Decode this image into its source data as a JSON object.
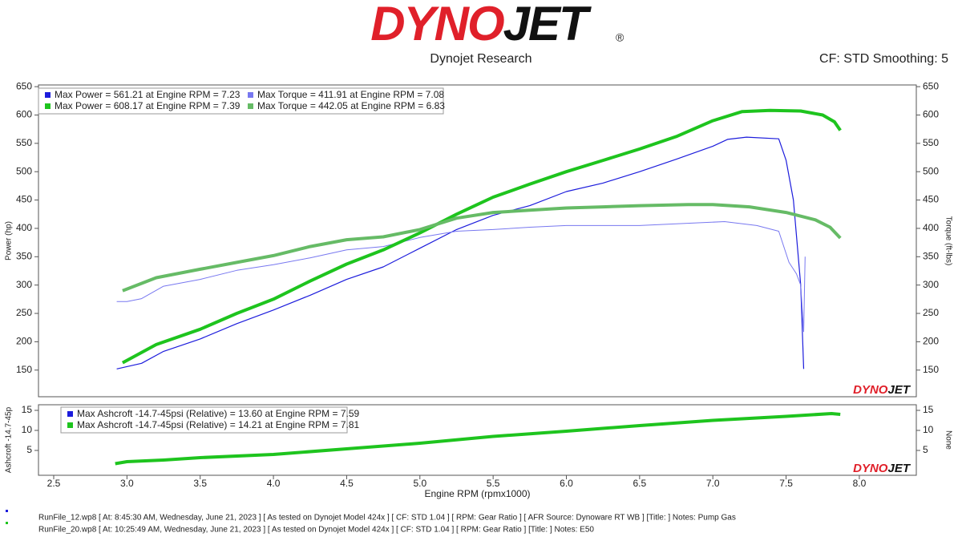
{
  "header": {
    "logo_red": "DYNO",
    "logo_black": "JET",
    "logo_mark": "®",
    "subtitle": "Dynojet Research",
    "settings": "CF: STD Smoothing: 5"
  },
  "chart_data": [
    {
      "type": "line",
      "ylabel": "Power (hp)",
      "y2label": "Torque (ft-lbs)",
      "xlim": [
        2.396,
        8.389
      ],
      "ylim": [
        103,
        653
      ],
      "yticks": [
        150,
        200,
        250,
        300,
        350,
        400,
        450,
        500,
        550,
        600,
        650
      ],
      "y2lim": [
        103,
        653
      ],
      "y2ticks": [
        150,
        200,
        250,
        300,
        350,
        400,
        450,
        500,
        550,
        600,
        650
      ],
      "grid": false,
      "series": [
        {
          "name": "Max Power = 561.21 at Engine RPM = 7.23",
          "color": "#1c1cdc",
          "width": 1.2,
          "x": [
            2.93,
            3.1,
            3.25,
            3.5,
            3.75,
            4.0,
            4.25,
            4.5,
            4.75,
            5.0,
            5.25,
            5.5,
            5.75,
            6.0,
            6.25,
            6.5,
            6.75,
            7.0,
            7.1,
            7.23,
            7.45,
            7.5,
            7.55,
            7.6,
            7.62
          ],
          "values": [
            152,
            162,
            183,
            205,
            232,
            256,
            282,
            310,
            332,
            365,
            398,
            423,
            440,
            465,
            480,
            500,
            522,
            545,
            557,
            561,
            558,
            520,
            450,
            300,
            152
          ]
        },
        {
          "name": "Max Torque = 411.91 at Engine RPM = 7.08",
          "color": "#7878f0",
          "width": 1,
          "axis": "y2",
          "x": [
            2.93,
            3.0,
            3.1,
            3.25,
            3.5,
            3.75,
            4.0,
            4.25,
            4.5,
            4.75,
            5.0,
            5.25,
            5.5,
            5.75,
            6.0,
            6.5,
            6.75,
            7.08,
            7.3,
            7.45,
            7.52,
            7.57,
            7.6,
            7.62,
            7.63
          ],
          "values": [
            271,
            271,
            276,
            298,
            310,
            326,
            336,
            348,
            362,
            368,
            384,
            395,
            398,
            402,
            405,
            405,
            408,
            412,
            405,
            395,
            340,
            320,
            300,
            218,
            350
          ]
        },
        {
          "name": "Max Power = 608.17 at Engine RPM = 7.39",
          "color": "#1ec41e",
          "width": 4,
          "x": [
            2.97,
            3.2,
            3.5,
            3.75,
            4.0,
            4.25,
            4.5,
            4.75,
            5.0,
            5.25,
            5.5,
            5.75,
            6.0,
            6.25,
            6.5,
            6.75,
            7.0,
            7.2,
            7.39,
            7.6,
            7.75,
            7.83,
            7.87
          ],
          "values": [
            163,
            195,
            222,
            250,
            275,
            307,
            337,
            362,
            392,
            425,
            455,
            478,
            500,
            520,
            540,
            562,
            590,
            606,
            608,
            607,
            600,
            588,
            573
          ]
        },
        {
          "name": "Max Torque = 442.05 at Engine RPM = 6.83",
          "color": "#66bb66",
          "width": 4,
          "axis": "y2",
          "x": [
            2.97,
            3.2,
            3.5,
            3.75,
            4.0,
            4.25,
            4.5,
            4.75,
            5.0,
            5.25,
            5.5,
            5.75,
            6.0,
            6.25,
            6.5,
            6.83,
            7.0,
            7.25,
            7.5,
            7.7,
            7.8,
            7.87
          ],
          "values": [
            290,
            313,
            328,
            340,
            352,
            368,
            380,
            385,
            398,
            418,
            428,
            432,
            436,
            438,
            440,
            442,
            442,
            438,
            428,
            415,
            402,
            383
          ]
        }
      ]
    },
    {
      "type": "line",
      "ylabel": "Ashcroft -14.7-45p",
      "y2label": "None",
      "xlabel": "Engine RPM (rpmx1000)",
      "xlim": [
        2.396,
        8.389
      ],
      "xticks": [
        2.5,
        {
          "value": 3,
          "label": "3.0"
        },
        3.5,
        {
          "value": 4,
          "label": "4.0"
        },
        4.5,
        {
          "value": 5,
          "label": "5.0"
        },
        5.5,
        {
          "value": 6,
          "label": "6.0"
        },
        6.5,
        {
          "value": 7,
          "label": "7.0"
        },
        7.5,
        {
          "value": 8,
          "label": "8.0"
        }
      ],
      "ylim": [
        -1.2,
        16.4
      ],
      "yticks": [
        5,
        10,
        15
      ],
      "y2lim": [
        -1.2,
        16.4
      ],
      "y2ticks": [
        5,
        10,
        15
      ],
      "grid": false,
      "series": [
        {
          "name": "Max Ashcroft -14.7-45psi (Relative) = 13.60 at Engine RPM = 7.59",
          "color": "#1c1cdc",
          "width": 1.2,
          "x": [],
          "values": []
        },
        {
          "name": "Max Ashcroft -14.7-45psi (Relative) = 14.21 at Engine RPM = 7.81",
          "color": "#1ec41e",
          "width": 4,
          "x": [
            2.92,
            3.0,
            3.25,
            3.5,
            4.0,
            4.5,
            5.0,
            5.5,
            6.0,
            6.5,
            7.0,
            7.5,
            7.81,
            7.87
          ],
          "values": [
            1.7,
            2.2,
            2.6,
            3.2,
            4.0,
            5.4,
            6.8,
            8.5,
            9.8,
            11.2,
            12.5,
            13.5,
            14.21,
            14.0
          ]
        }
      ]
    }
  ],
  "footer": [
    {
      "text": "RunFile_12.wp8 [ At: 8:45:30 AM, Wednesday, June 21, 2023 ] [ As tested on Dynojet Model 424x ] [ CF: STD 1.04 ] [ RPM: Gear Ratio ] [ AFR Source: Dynoware RT WB ] [Title: ]  Notes: Pump Gas",
      "color": "#1c1cdc"
    },
    {
      "text": "RunFile_20.wp8 [ At: 10:25:49 AM, Wednesday, June 21, 2023 ] [ As tested on Dynojet Model 424x ] [ CF: STD 1.04 ] [ RPM: Gear Ratio ] [Title: ]  Notes: E50",
      "color": "#1ec41e"
    }
  ]
}
